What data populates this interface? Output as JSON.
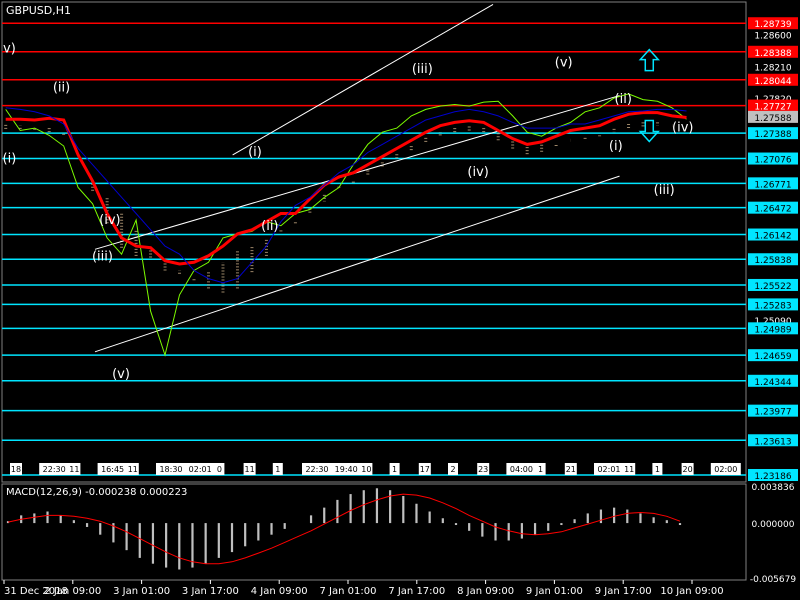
{
  "window": {
    "title": "GBPUSD,H1"
  },
  "chart_data": [
    {
      "type": "line",
      "title": "GBPUSD,H1",
      "ylim": [
        1.231,
        1.29
      ],
      "price_levels": [
        {
          "value": 1.28739,
          "label": "1.28739",
          "color": "#ff0000",
          "tagged": true
        },
        {
          "value": 1.286,
          "label": "1.28600",
          "tagged": false
        },
        {
          "value": 1.28388,
          "label": "1.28388",
          "color": "#ff0000",
          "tagged": true
        },
        {
          "value": 1.2821,
          "label": "1.28210",
          "tagged": false
        },
        {
          "value": 1.28044,
          "label": "1.28044",
          "color": "#ff0000",
          "tagged": true
        },
        {
          "value": 1.2782,
          "label": "1.27820",
          "tagged": false
        },
        {
          "value": 1.27727,
          "label": "1.27727",
          "color": "#ff0000",
          "tagged": true
        },
        {
          "value": 1.27588,
          "label": "1.27588",
          "color": "#c0c0c0",
          "tagged": true,
          "current": true
        },
        {
          "value": 1.27388,
          "label": "1.27388",
          "color": "#00e5ff",
          "tagged": true
        },
        {
          "value": 1.27076,
          "label": "1.27076",
          "color": "#00e5ff",
          "tagged": true
        },
        {
          "value": 1.26771,
          "label": "1.26771",
          "color": "#00e5ff",
          "tagged": true
        },
        {
          "value": 1.26472,
          "label": "1.26472",
          "color": "#00e5ff",
          "tagged": true
        },
        {
          "value": 1.26142,
          "label": "1.26142",
          "color": "#00e5ff",
          "tagged": true
        },
        {
          "value": 1.25838,
          "label": "1.25838",
          "color": "#00e5ff",
          "tagged": true
        },
        {
          "value": 1.25522,
          "label": "1.25522",
          "color": "#00e5ff",
          "tagged": true
        },
        {
          "value": 1.25283,
          "label": "1.25283",
          "color": "#00e5ff",
          "tagged": true
        },
        {
          "value": 1.2509,
          "label": "1.25090",
          "tagged": false
        },
        {
          "value": 1.24989,
          "label": "1.24989",
          "color": "#00e5ff",
          "tagged": true
        },
        {
          "value": 1.24659,
          "label": "1.24659",
          "color": "#00e5ff",
          "tagged": true
        },
        {
          "value": 1.24344,
          "label": "1.24344",
          "color": "#00e5ff",
          "tagged": true
        },
        {
          "value": 1.23977,
          "label": "1.23977",
          "color": "#00e5ff",
          "tagged": true
        },
        {
          "value": 1.23613,
          "label": "1.23613",
          "color": "#00e5ff",
          "tagged": true
        },
        {
          "value": 1.23186,
          "label": "1.23186",
          "color": "#00e5ff",
          "tagged": true
        }
      ],
      "x_ticks": [
        "31 Dec 2018",
        "2 Jan 09:00",
        "3 Jan 01:00",
        "3 Jan 17:00",
        "4 Jan 09:00",
        "7 Jan 01:00",
        "7 Jan 17:00",
        "8 Jan 09:00",
        "9 Jan 01:00",
        "9 Jan 17:00",
        "10 Jan 09:00"
      ],
      "series": [
        {
          "name": "",
          "color": "#7cfc00",
          "values": [
            1.2768,
            1.2742,
            1.2745,
            1.2736,
            1.2723,
            1.2672,
            1.2652,
            1.261,
            1.259,
            1.2632,
            1.252,
            1.2466,
            1.254,
            1.257,
            1.258,
            1.261,
            1.2615,
            1.2618,
            1.263,
            1.2625,
            1.264,
            1.2645,
            1.266,
            1.2672,
            1.27,
            1.2725,
            1.274,
            1.2745,
            1.276,
            1.2768,
            1.2772,
            1.2774,
            1.2772,
            1.2777,
            1.2778,
            1.276,
            1.274,
            1.2735,
            1.2745,
            1.2752,
            1.2765,
            1.277,
            1.2782,
            1.2787,
            1.278,
            1.2778,
            1.277,
            1.2756
          ]
        },
        {
          "name": "",
          "color": "#ff0000",
          "values": [
            1.2756,
            1.2756,
            1.2755,
            1.2757,
            1.2755,
            1.2712,
            1.268,
            1.264,
            1.261,
            1.26,
            1.2598,
            1.2582,
            1.2578,
            1.258,
            1.2588,
            1.26,
            1.2615,
            1.262,
            1.263,
            1.264,
            1.264,
            1.2658,
            1.2675,
            1.2685,
            1.269,
            1.27,
            1.271,
            1.272,
            1.273,
            1.274,
            1.2748,
            1.2752,
            1.2754,
            1.2752,
            1.2742,
            1.2732,
            1.2725,
            1.2728,
            1.2735,
            1.2742,
            1.2745,
            1.2748,
            1.2756,
            1.2762,
            1.2764,
            1.2764,
            1.276,
            1.2758
          ]
        },
        {
          "name": "",
          "color": "#0000cd",
          "values": [
            1.277,
            1.2768,
            1.2765,
            1.276,
            1.275,
            1.272,
            1.27,
            1.268,
            1.266,
            1.264,
            1.262,
            1.26,
            1.259,
            1.257,
            1.256,
            1.2555,
            1.256,
            1.258,
            1.26,
            1.263,
            1.265,
            1.266,
            1.2675,
            1.269,
            1.27,
            1.2715,
            1.2725,
            1.2735,
            1.2745,
            1.2755,
            1.276,
            1.2765,
            1.2768,
            1.2765,
            1.276,
            1.2752,
            1.2745,
            1.2745,
            1.2745,
            1.275,
            1.275,
            1.2755,
            1.276,
            1.2765,
            1.2766,
            1.2768,
            1.2768,
            1.2766
          ]
        }
      ],
      "channel_lines": [
        {
          "x0": 0.125,
          "y0": 1.247,
          "x1": 0.83,
          "y1": 1.2686
        },
        {
          "x0": 0.125,
          "y0": 1.2596,
          "x1": 0.83,
          "y1": 1.2785
        },
        {
          "x0": 0.31,
          "y0": 1.2712,
          "x1": 0.66,
          "y1": 1.2897
        }
      ],
      "wave_labels": [
        {
          "text": "v)",
          "x": 0.01,
          "y": 1.2838
        },
        {
          "text": "(ii)",
          "x": 0.08,
          "y": 1.279
        },
        {
          "text": "(i)",
          "x": 0.01,
          "y": 1.2703
        },
        {
          "text": "(iv)",
          "x": 0.145,
          "y": 1.2627
        },
        {
          "text": "(iii)",
          "x": 0.135,
          "y": 1.2582
        },
        {
          "text": "(v)",
          "x": 0.16,
          "y": 1.2438
        },
        {
          "text": "(i)",
          "x": 0.34,
          "y": 1.2711
        },
        {
          "text": "(ii)",
          "x": 0.36,
          "y": 1.262
        },
        {
          "text": "(iii)",
          "x": 0.565,
          "y": 1.2813
        },
        {
          "text": "(iv)",
          "x": 0.64,
          "y": 1.2686
        },
        {
          "text": "(v)",
          "x": 0.755,
          "y": 1.2821
        },
        {
          "text": "(ii)",
          "x": 0.835,
          "y": 1.2776
        },
        {
          "text": "(iv)",
          "x": 0.915,
          "y": 1.2741
        },
        {
          "text": "(i)",
          "x": 0.825,
          "y": 1.2718
        },
        {
          "text": "(iii)",
          "x": 0.89,
          "y": 1.2664
        }
      ],
      "arrows": [
        {
          "direction": "up",
          "x": 0.87,
          "y": 1.2828,
          "color": "#00e5ff"
        },
        {
          "direction": "down",
          "x": 0.87,
          "y": 1.2742,
          "color": "#00e5ff"
        }
      ],
      "time_labels": [
        "18",
        "22:30",
        "11",
        "16:45",
        "11",
        "18:30",
        "02:01",
        "0",
        "11",
        "1",
        "22:30",
        "19:40",
        "10",
        "1",
        "17",
        "2",
        "23",
        "04:00",
        "1",
        "21",
        "02:01",
        "11",
        "1",
        "20",
        "02:00"
      ]
    },
    {
      "type": "bar",
      "title": "MACD(12,26,9) -0.000238 0.000223",
      "ylim": [
        -0.005679,
        0.003836
      ],
      "y_ticks": [
        {
          "value": 0.003836,
          "label": "0.003836"
        },
        {
          "value": 0.0,
          "label": "0.000000"
        },
        {
          "value": -0.005679,
          "label": "-0.005679"
        }
      ],
      "histogram": [
        0.0002,
        0.0008,
        0.001,
        0.0012,
        0.0008,
        0.0003,
        -0.0004,
        -0.0012,
        -0.002,
        -0.0028,
        -0.0036,
        -0.0042,
        -0.0046,
        -0.0048,
        -0.0046,
        -0.0042,
        -0.0036,
        -0.003,
        -0.0024,
        -0.0018,
        -0.0012,
        -0.0006,
        0.0,
        0.0008,
        0.0016,
        0.0024,
        0.003,
        0.0034,
        0.0036,
        0.0034,
        0.0028,
        0.002,
        0.0012,
        0.0005,
        -0.0002,
        -0.0008,
        -0.0014,
        -0.0018,
        -0.0018,
        -0.0016,
        -0.0012,
        -0.0008,
        -0.0002,
        0.0004,
        0.001,
        0.0014,
        0.0016,
        0.0014,
        0.001,
        0.0006,
        0.0003,
        -0.0002
      ],
      "signal": [
        0.0001,
        0.0004,
        0.0006,
        0.0008,
        0.0008,
        0.0007,
        0.0005,
        0.0002,
        -0.0003,
        -0.0009,
        -0.0016,
        -0.0023,
        -0.003,
        -0.0036,
        -0.004,
        -0.0042,
        -0.0042,
        -0.004,
        -0.0036,
        -0.0031,
        -0.0026,
        -0.002,
        -0.0014,
        -0.0008,
        -0.0001,
        0.0006,
        0.0013,
        0.0019,
        0.0024,
        0.0028,
        0.003,
        0.0029,
        0.0026,
        0.0021,
        0.0015,
        0.0008,
        0.0002,
        -0.0004,
        -0.0008,
        -0.0011,
        -0.0012,
        -0.0011,
        -0.0009,
        -0.0005,
        -0.0001,
        0.0003,
        0.0007,
        0.001,
        0.0011,
        0.001,
        0.0007,
        0.0002
      ]
    }
  ]
}
